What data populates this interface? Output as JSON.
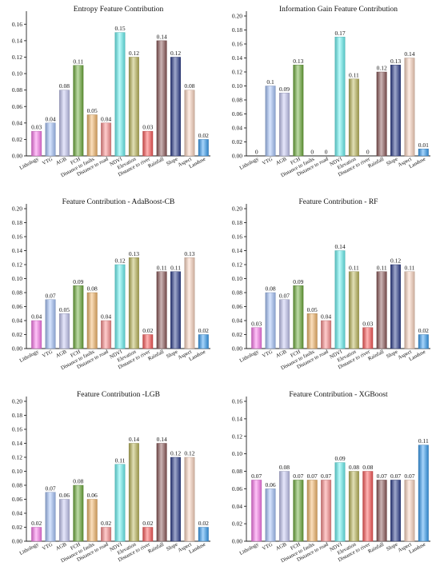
{
  "chart_data": [
    {
      "type": "bar",
      "title": "Entropy Feature Contribution",
      "categories": [
        "Lithology",
        "VTG",
        "AGB",
        "FCH",
        "Distance to faults",
        "Distance to road",
        "NDVI",
        "Elevation",
        "Distance to river",
        "Rainfall",
        "Slope",
        "Aspect",
        "Landuse"
      ],
      "values": [
        0.03,
        0.04,
        0.08,
        0.11,
        0.05,
        0.04,
        0.15,
        0.12,
        0.03,
        0.14,
        0.12,
        0.08,
        0.02
      ],
      "value_labels": [
        "0.03",
        "0.04",
        "0.08",
        "0.11",
        "0.05",
        "0.04",
        "0.15",
        "0.12",
        "0.03",
        "0.14",
        "0.12",
        "0.08",
        "0.02"
      ],
      "ylim": [
        0,
        0.17
      ],
      "yticks": [
        "0.00",
        "0.02",
        "0.04",
        "0.06",
        "0.08",
        "0.10",
        "0.12",
        "0.14",
        "0.16"
      ],
      "ytick_values": [
        0,
        0.02,
        0.04,
        0.06,
        0.08,
        0.1,
        0.12,
        0.14,
        0.16
      ]
    },
    {
      "type": "bar",
      "title": "Information Gain Feature Contribution",
      "categories": [
        "Lithology",
        "VTG",
        "AGB",
        "FCH",
        "Distance to faults",
        "Distance to road",
        "NDVI",
        "Elevation",
        "Distance to river",
        "Rainfall",
        "Slope",
        "Aspect",
        "Landuse"
      ],
      "values": [
        0,
        0.1,
        0.09,
        0.13,
        0,
        0,
        0.17,
        0.11,
        0,
        0.12,
        0.13,
        0.14,
        0.01
      ],
      "value_labels": [
        "0",
        "0.1",
        "0.09",
        "0.13",
        "0",
        "0",
        "0.17",
        "0.11",
        "0",
        "0.12",
        "0.13",
        "0.14",
        "0.01"
      ],
      "ylim": [
        0,
        0.2
      ],
      "yticks": [
        "0.00",
        "0.02",
        "0.04",
        "0.06",
        "0.08",
        "0.10",
        "0.12",
        "0.14",
        "0.16",
        "0.18",
        "0.20"
      ],
      "ytick_values": [
        0,
        0.02,
        0.04,
        0.06,
        0.08,
        0.1,
        0.12,
        0.14,
        0.16,
        0.18,
        0.2
      ]
    },
    {
      "type": "bar",
      "title": "Feature Contribution - AdaBoost-CB",
      "categories": [
        "Lithology",
        "VTG",
        "AGB",
        "FCH",
        "Distance to faults",
        "Distance to road",
        "NDVI",
        "Elevation",
        "Distance to river",
        "Rainfall",
        "Slope",
        "Aspect",
        "Landuse"
      ],
      "values": [
        0.04,
        0.07,
        0.05,
        0.09,
        0.08,
        0.04,
        0.12,
        0.13,
        0.02,
        0.11,
        0.11,
        0.13,
        0.02
      ],
      "value_labels": [
        "0.04",
        "0.07",
        "0.05",
        "0.09",
        "0.08",
        "0.04",
        "0.12",
        "0.13",
        "0.02",
        "0.11",
        "0.11",
        "0.13",
        "0.02"
      ],
      "ylim": [
        0,
        0.2
      ],
      "yticks": [
        "0.00",
        "0.02",
        "0.04",
        "0.06",
        "0.08",
        "0.10",
        "0.12",
        "0.14",
        "0.16",
        "0.18",
        "0.20"
      ],
      "ytick_values": [
        0,
        0.02,
        0.04,
        0.06,
        0.08,
        0.1,
        0.12,
        0.14,
        0.16,
        0.18,
        0.2
      ]
    },
    {
      "type": "bar",
      "title": "Feature Contribution - RF",
      "categories": [
        "Lithology",
        "VTG",
        "AGB",
        "FCH",
        "Distance to faults",
        "Distance to road",
        "NDVI",
        "Elevation",
        "Distance to river",
        "Rainfall",
        "Slope",
        "Aspect",
        "Landuse"
      ],
      "values": [
        0.03,
        0.08,
        0.07,
        0.09,
        0.05,
        0.04,
        0.14,
        0.11,
        0.03,
        0.11,
        0.12,
        0.11,
        0.02
      ],
      "value_labels": [
        "0.03",
        "0.08",
        "0.07",
        "0.09",
        "0.05",
        "0.04",
        "0.14",
        "0.11",
        "0.03",
        "0.11",
        "0.12",
        "0.11",
        "0.02"
      ],
      "ylim": [
        0,
        0.2
      ],
      "yticks": [
        "0.00",
        "0.02",
        "0.04",
        "0.06",
        "0.08",
        "0.10",
        "0.12",
        "0.14",
        "0.16",
        "0.18",
        "0.20"
      ],
      "ytick_values": [
        0,
        0.02,
        0.04,
        0.06,
        0.08,
        0.1,
        0.12,
        0.14,
        0.16,
        0.18,
        0.2
      ]
    },
    {
      "type": "bar",
      "title": "Feature Contribution -LGB",
      "categories": [
        "Lithology",
        "VTG",
        "AGB",
        "FCH",
        "Distance to faults",
        "Distance to road",
        "NDVI",
        "Elevation",
        "Distance to river",
        "Rainfall",
        "Slope",
        "Aspect",
        "Landuse"
      ],
      "values": [
        0.02,
        0.07,
        0.06,
        0.08,
        0.06,
        0.02,
        0.11,
        0.14,
        0.02,
        0.14,
        0.12,
        0.12,
        0.02
      ],
      "value_labels": [
        "0.02",
        "0.07",
        "0.06",
        "0.08",
        "0.06",
        "0.02",
        "0.11",
        "0.14",
        "0.02",
        "0.14",
        "0.12",
        "0.12",
        "0.02"
      ],
      "ylim": [
        0,
        0.2
      ],
      "yticks": [
        "0.00",
        "0.02",
        "0.04",
        "0.06",
        "0.08",
        "0.10",
        "0.12",
        "0.14",
        "0.16",
        "0.18",
        "0.20"
      ],
      "ytick_values": [
        0,
        0.02,
        0.04,
        0.06,
        0.08,
        0.1,
        0.12,
        0.14,
        0.16,
        0.18,
        0.2
      ]
    },
    {
      "type": "bar",
      "title": "Feature Contribution - XGBoost",
      "categories": [
        "Lithology",
        "VTG",
        "AGB",
        "FCH",
        "Distance to faults",
        "Distance to road",
        "NDVI",
        "Elevation",
        "Distance to river",
        "Rainfall",
        "Slope",
        "Aspect",
        "Landuse"
      ],
      "values": [
        0.07,
        0.06,
        0.08,
        0.07,
        0.07,
        0.07,
        0.09,
        0.08,
        0.08,
        0.07,
        0.07,
        0.07,
        0.11
      ],
      "value_labels": [
        "0.07",
        "0.06",
        "0.08",
        "0.07",
        "0.07",
        "0.07",
        "0.09",
        "0.08",
        "0.08",
        "0.07",
        "0.07",
        "0.07",
        "0.11"
      ],
      "ylim": [
        0,
        0.16
      ],
      "yticks": [
        "0.00",
        "0.02",
        "0.04",
        "0.06",
        "0.08",
        "0.10",
        "0.12",
        "0.14",
        "0.16"
      ],
      "ytick_values": [
        0,
        0.02,
        0.04,
        0.06,
        0.08,
        0.1,
        0.12,
        0.14,
        0.16
      ]
    }
  ],
  "bar_colors": [
    "#ff7bf0",
    "#a9c7ff",
    "#c7c9f5",
    "#6fae3c",
    "#f5b86a",
    "#ff8f8f",
    "#69f5f5",
    "#bdb85a",
    "#ff5a5a",
    "#8e5a5a",
    "#2e3f8e",
    "#ffd8c2",
    "#3aa0f5"
  ]
}
